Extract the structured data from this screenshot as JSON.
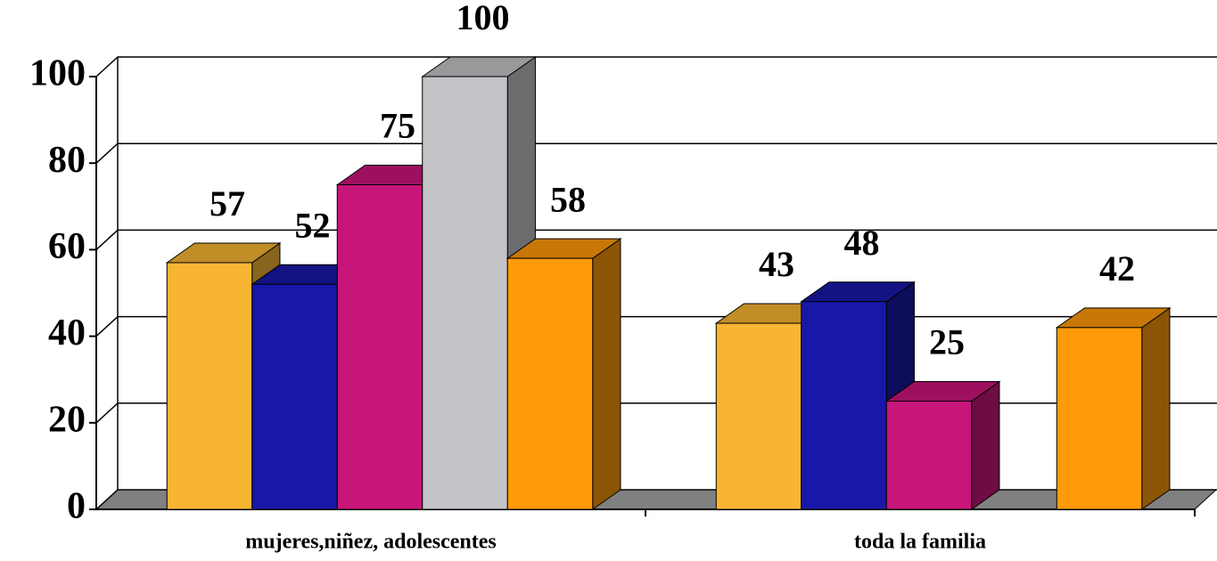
{
  "chart_data": {
    "type": "bar3d",
    "categories": [
      "mujeres,niñez, adolescentes",
      "toda la familia"
    ],
    "series": [
      {
        "color": "#f7b532",
        "values": [
          57,
          43
        ]
      },
      {
        "color": "#1818a8",
        "values": [
          52,
          48
        ]
      },
      {
        "color": "#c8157a",
        "values": [
          75,
          25
        ]
      },
      {
        "color": "#c4c4c8",
        "values": [
          100,
          null
        ]
      },
      {
        "color": "#ff9a0a",
        "values": [
          58,
          42
        ]
      }
    ],
    "ylim": [
      0,
      100
    ],
    "yticks": [
      0,
      20,
      40,
      60,
      80,
      100
    ],
    "grid": true
  }
}
